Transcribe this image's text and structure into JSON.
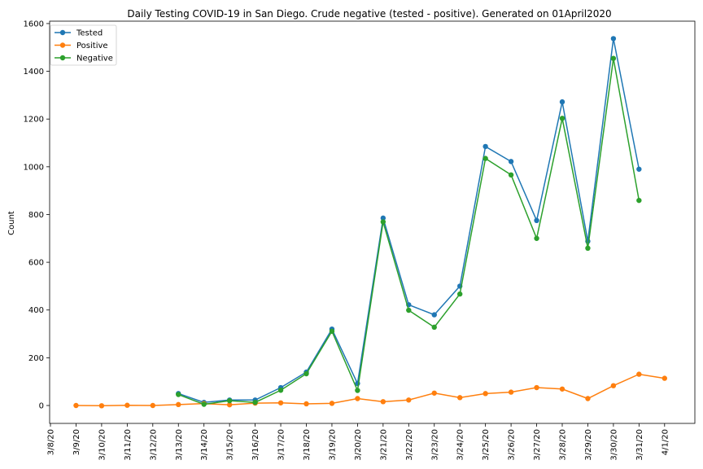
{
  "chart_data": {
    "type": "line",
    "title": "Daily Testing COVID-19 in San Diego. Crude negative (tested - positive). Generated on 01April2020",
    "xlabel": "",
    "ylabel": "Count",
    "categories": [
      "3/8/20",
      "3/9/20",
      "3/10/20",
      "3/11/20",
      "3/12/20",
      "3/13/20",
      "3/14/20",
      "3/15/20",
      "3/16/20",
      "3/17/20",
      "3/18/20",
      "3/19/20",
      "3/20/20",
      "3/21/20",
      "3/22/20",
      "3/23/20",
      "3/24/20",
      "3/25/20",
      "3/26/20",
      "3/27/20",
      "3/28/20",
      "3/29/20",
      "3/30/20",
      "3/31/20",
      "4/1/20"
    ],
    "y_ticks": [
      0,
      200,
      400,
      600,
      800,
      1000,
      1200,
      1400,
      1600
    ],
    "ylim": [
      -75,
      1610
    ],
    "legend_position": "top-left",
    "grid": false,
    "series": [
      {
        "name": "Tested",
        "color": "#1f77b4",
        "values": [
          null,
          null,
          null,
          null,
          null,
          50,
          13,
          23,
          23,
          75,
          140,
          320,
          92,
          785,
          422,
          380,
          500,
          1085,
          1022,
          775,
          1272,
          688,
          1537,
          990,
          null
        ]
      },
      {
        "name": "Positive",
        "color": "#ff7f0e",
        "values": [
          null,
          0,
          -1,
          1,
          0,
          4,
          8,
          3,
          10,
          11,
          7,
          9,
          29,
          16,
          23,
          52,
          33,
          50,
          56,
          75,
          69,
          29,
          83,
          131,
          114
        ]
      },
      {
        "name": "Negative",
        "color": "#2ca02c",
        "values": [
          null,
          null,
          null,
          null,
          null,
          46,
          5,
          20,
          13,
          64,
          133,
          311,
          63,
          769,
          399,
          328,
          467,
          1035,
          966,
          700,
          1203,
          659,
          1454,
          859,
          null
        ]
      }
    ]
  }
}
